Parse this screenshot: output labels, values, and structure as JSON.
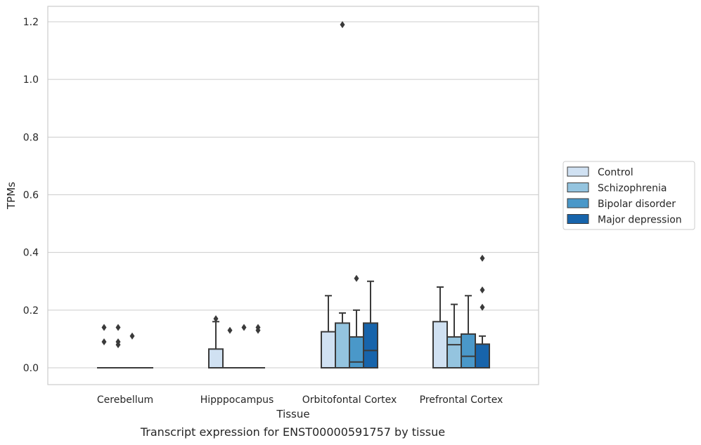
{
  "caption": "Transcript expression for ENST00000591757 by tissue",
  "chart_data": {
    "type": "boxplot",
    "xlabel": "Tissue",
    "ylabel": "TPMs",
    "ylim": [
      -0.06,
      1.25
    ],
    "yticks": [
      0.0,
      0.2,
      0.4,
      0.6,
      0.8,
      1.0,
      1.2
    ],
    "ytick_labels": [
      "0.0",
      "0.2",
      "0.4",
      "0.6",
      "0.8",
      "1.0",
      "1.2"
    ],
    "grid": true,
    "legend_position": "right",
    "categories": [
      "Cerebellum",
      "Hipppocampus",
      "Orbitofontal Cortex",
      "Prefrontal Cortex"
    ],
    "series": [
      {
        "name": "Control",
        "color": "#d0e1f2",
        "boxes": [
          {
            "q1": 0.0,
            "median": 0.0,
            "q3": 0.0,
            "whisker_low": 0.0,
            "whisker_high": 0.0,
            "outliers": [
              0.14,
              0.09
            ]
          },
          {
            "q1": 0.0,
            "median": 0.0,
            "q3": 0.065,
            "whisker_low": 0.0,
            "whisker_high": 0.16,
            "outliers": [
              0.17
            ]
          },
          {
            "q1": 0.0,
            "median": 0.0,
            "q3": 0.125,
            "whisker_low": 0.0,
            "whisker_high": 0.25,
            "outliers": []
          },
          {
            "q1": 0.0,
            "median": 0.0,
            "q3": 0.16,
            "whisker_low": 0.0,
            "whisker_high": 0.28,
            "outliers": []
          }
        ]
      },
      {
        "name": "Schizophrenia",
        "color": "#94c4df",
        "boxes": [
          {
            "q1": 0.0,
            "median": 0.0,
            "q3": 0.0,
            "whisker_low": 0.0,
            "whisker_high": 0.0,
            "outliers": [
              0.14,
              0.09,
              0.08
            ]
          },
          {
            "q1": 0.0,
            "median": 0.0,
            "q3": 0.0,
            "whisker_low": 0.0,
            "whisker_high": 0.0,
            "outliers": [
              0.13
            ]
          },
          {
            "q1": 0.0,
            "median": 0.0,
            "q3": 0.155,
            "whisker_low": 0.0,
            "whisker_high": 0.19,
            "outliers": [
              1.19
            ]
          },
          {
            "q1": 0.0,
            "median": 0.08,
            "q3": 0.107,
            "whisker_low": 0.0,
            "whisker_high": 0.22,
            "outliers": []
          }
        ]
      },
      {
        "name": "Bipolar disorder",
        "color": "#4a98c9",
        "boxes": [
          {
            "q1": 0.0,
            "median": 0.0,
            "q3": 0.0,
            "whisker_low": 0.0,
            "whisker_high": 0.0,
            "outliers": [
              0.11
            ]
          },
          {
            "q1": 0.0,
            "median": 0.0,
            "q3": 0.0,
            "whisker_low": 0.0,
            "whisker_high": 0.0,
            "outliers": [
              0.14
            ]
          },
          {
            "q1": 0.0,
            "median": 0.02,
            "q3": 0.107,
            "whisker_low": 0.0,
            "whisker_high": 0.2,
            "outliers": [
              0.31
            ]
          },
          {
            "q1": 0.0,
            "median": 0.04,
            "q3": 0.117,
            "whisker_low": 0.0,
            "whisker_high": 0.25,
            "outliers": []
          }
        ]
      },
      {
        "name": "Major depression",
        "color": "#1764ab",
        "boxes": [
          {
            "q1": 0.0,
            "median": 0.0,
            "q3": 0.0,
            "whisker_low": 0.0,
            "whisker_high": 0.0,
            "outliers": []
          },
          {
            "q1": 0.0,
            "median": 0.0,
            "q3": 0.0,
            "whisker_low": 0.0,
            "whisker_high": 0.0,
            "outliers": [
              0.14,
              0.13
            ]
          },
          {
            "q1": 0.0,
            "median": 0.06,
            "q3": 0.155,
            "whisker_low": 0.0,
            "whisker_high": 0.3,
            "outliers": []
          },
          {
            "q1": 0.0,
            "median": 0.0,
            "q3": 0.082,
            "whisker_low": 0.0,
            "whisker_high": 0.11,
            "outliers": [
              0.38,
              0.27,
              0.21
            ]
          }
        ]
      }
    ]
  }
}
